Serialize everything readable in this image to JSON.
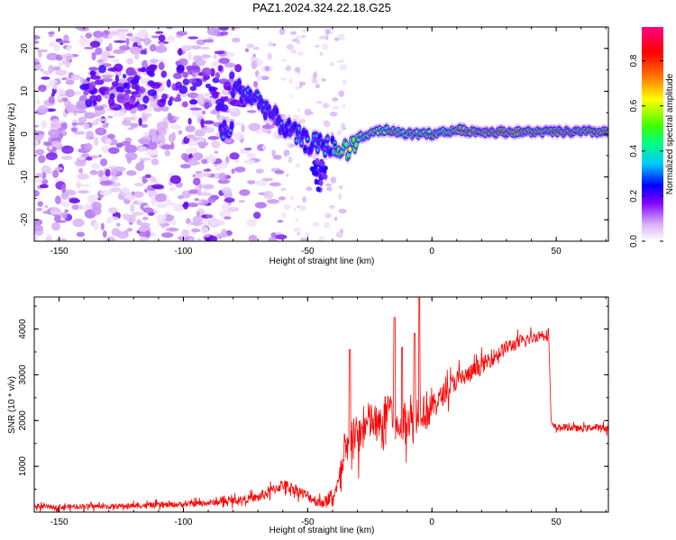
{
  "chart_data": [
    {
      "type": "heatmap",
      "title": "PAZ1.2024.324.22.18.G25",
      "xlabel": "Height of straight line (km)",
      "ylabel": "Frequency (Hz)",
      "xlim": [
        -160,
        71
      ],
      "ylim": [
        -25,
        25
      ],
      "xticks": [
        -150,
        -100,
        -50,
        0,
        50
      ],
      "yticks": [
        -20,
        -10,
        0,
        10,
        20
      ],
      "colorbar": {
        "label": "Normalized spectral amplitude",
        "range": [
          0,
          0.95
        ],
        "ticks": [
          0.0,
          0.2,
          0.4,
          0.6,
          0.8
        ],
        "colormap": [
          "#e8c8f8",
          "#a050f0",
          "#6000ff",
          "#0000ff",
          "#00c8ff",
          "#00ff80",
          "#40ff00",
          "#ffff00",
          "#ff8000",
          "#ff0000",
          "#ff0080"
        ]
      },
      "ridge": {
        "description_points_x": [
          -80,
          -70,
          -60,
          -50,
          -40,
          -35,
          -30,
          -20,
          -10,
          0,
          10,
          20,
          40,
          60,
          71
        ],
        "description_points_y": [
          11,
          8,
          2,
          -2,
          -3,
          -4,
          -1,
          1,
          0,
          0,
          1,
          0.5,
          0.5,
          0.5,
          0.5
        ]
      }
    },
    {
      "type": "line",
      "xlabel": "Height of straight line (km)",
      "ylabel": "SNR (10 * v/v)",
      "xlim": [
        -160,
        71
      ],
      "ylim": [
        0,
        4700
      ],
      "xticks": [
        -150,
        -100,
        -50,
        0,
        50
      ],
      "yticks": [
        1000,
        2000,
        3000,
        4000
      ],
      "color": "#ff0000",
      "series": [
        {
          "x": [
            -160,
            -150,
            -140,
            -130,
            -120,
            -110,
            -100,
            -90,
            -80,
            -70,
            -65,
            -60,
            -55,
            -50,
            -45,
            -40,
            -36,
            -34,
            -32,
            -30,
            -25,
            -20,
            -17,
            -15,
            -10,
            -7,
            -5,
            -3,
            0,
            5,
            10,
            15,
            20,
            25,
            30,
            35,
            40,
            45,
            47,
            48,
            50,
            55,
            60,
            65,
            71
          ],
          "y": [
            120,
            110,
            130,
            120,
            140,
            150,
            170,
            200,
            250,
            320,
            450,
            600,
            500,
            350,
            200,
            300,
            900,
            1300,
            1800,
            1600,
            2000,
            1800,
            2500,
            1700,
            2100,
            1900,
            2400,
            2200,
            2300,
            2600,
            2900,
            3000,
            3200,
            3400,
            3600,
            3700,
            3800,
            3900,
            3850,
            1900,
            1850,
            1850,
            1820,
            1850,
            1830
          ]
        }
      ]
    }
  ]
}
